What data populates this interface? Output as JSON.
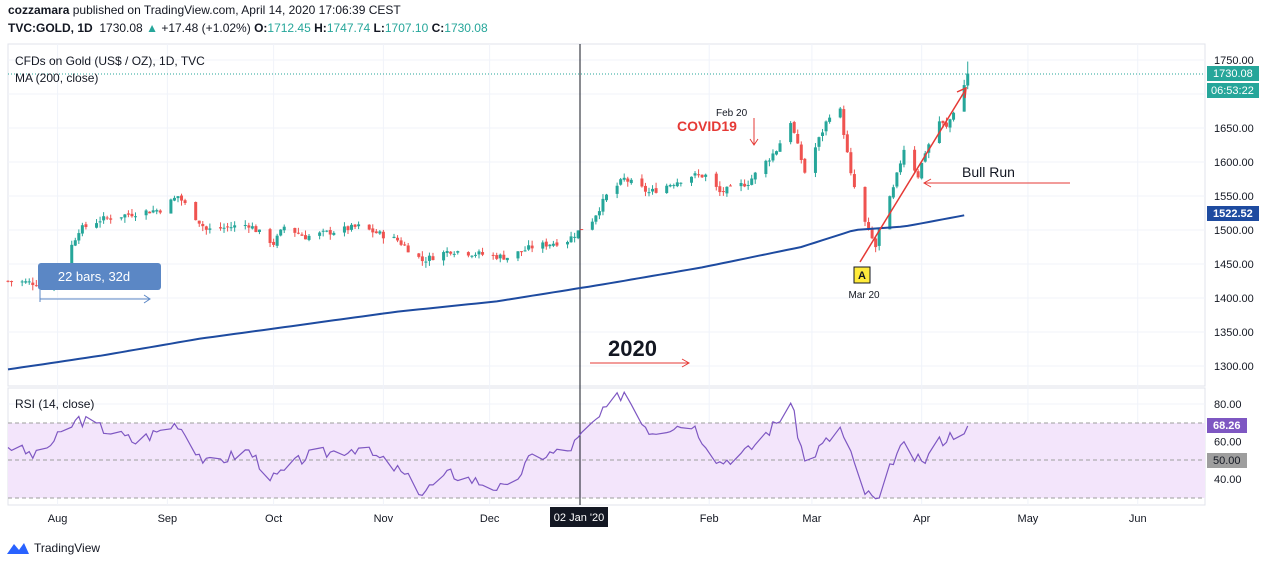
{
  "header": {
    "author": "cozzamara",
    "published_text": "published on TradingView.com, April 14, 2020 17:06:39 CEST",
    "symbol": "TVC:GOLD, 1D",
    "last": "1730.08",
    "change": "+17.48 (+1.02%)",
    "o_label": "O:",
    "o": "1712.45",
    "h_label": "H:",
    "h": "1747.74",
    "l_label": "L:",
    "l": "1707.10",
    "c_label": "C:",
    "c": "1730.08"
  },
  "legend": {
    "instrument": "CFDs on Gold (US$ / OZ), 1D, TVC",
    "ma": "MA (200, close)",
    "rsi": "RSI (14, close)"
  },
  "annotations": {
    "bars_label": "22 bars, 32d",
    "covid": "COVID19",
    "feb20": "Feb 20",
    "year": "2020",
    "bull_run": "Bull Run",
    "marker": "A",
    "mar20": "Mar 20"
  },
  "price_axis": {
    "labels": [
      "1750.00",
      "1700.00",
      "1650.00",
      "1600.00",
      "1550.00",
      "1500.00",
      "1450.00",
      "1400.00",
      "1350.00",
      "1300.00"
    ],
    "last_price_tag": "1730.08",
    "countdown_tag": "06:53:22",
    "ma_tag": "1522.52"
  },
  "rsi_axis": {
    "labels": [
      "80.00",
      "60.00",
      "40.00"
    ],
    "rsi_tag": "68.26",
    "mid_tag": "50.00"
  },
  "time_axis": {
    "labels": [
      "Aug",
      "Sep",
      "Oct",
      "Nov",
      "Dec",
      "Feb",
      "Mar",
      "Apr",
      "May",
      "Jun"
    ],
    "crosshair_label": "02 Jan '20"
  },
  "colors": {
    "up": "#26a69a",
    "down": "#ef5350",
    "ma": "#1e4ba0",
    "rsi": "#7e57c2",
    "rsi_band": "#f3e5fb",
    "annotation_red": "#e53935",
    "label_blue": "#5b87c5"
  },
  "footer": {
    "brand": "TradingView"
  },
  "chart_data": [
    {
      "type": "candlestick",
      "title": "CFDs on Gold (US$ / OZ), 1D, TVC",
      "x_range": [
        "2019-07-18",
        "2020-06-20"
      ],
      "ylim": [
        1280,
        1765
      ],
      "price_anchors": [
        {
          "date": "2019-07-18",
          "close": 1425
        },
        {
          "date": "2019-07-31",
          "close": 1420
        },
        {
          "date": "2019-08-07",
          "close": 1500
        },
        {
          "date": "2019-08-13",
          "close": 1515
        },
        {
          "date": "2019-08-23",
          "close": 1525
        },
        {
          "date": "2019-08-30",
          "close": 1530
        },
        {
          "date": "2019-09-04",
          "close": 1550
        },
        {
          "date": "2019-09-12",
          "close": 1500
        },
        {
          "date": "2019-09-24",
          "close": 1508
        },
        {
          "date": "2019-10-01",
          "close": 1480
        },
        {
          "date": "2019-10-04",
          "close": 1505
        },
        {
          "date": "2019-10-10",
          "close": 1490
        },
        {
          "date": "2019-10-25",
          "close": 1505
        },
        {
          "date": "2019-11-05",
          "close": 1485
        },
        {
          "date": "2019-11-12",
          "close": 1455
        },
        {
          "date": "2019-11-20",
          "close": 1470
        },
        {
          "date": "2019-12-02",
          "close": 1462
        },
        {
          "date": "2019-12-06",
          "close": 1460
        },
        {
          "date": "2019-12-13",
          "close": 1475
        },
        {
          "date": "2019-12-23",
          "close": 1485
        },
        {
          "date": "2019-12-30",
          "close": 1515
        },
        {
          "date": "2020-01-03",
          "close": 1550
        },
        {
          "date": "2020-01-08",
          "close": 1575
        },
        {
          "date": "2020-01-15",
          "close": 1555
        },
        {
          "date": "2020-01-27",
          "close": 1580
        },
        {
          "date": "2020-01-31",
          "close": 1580
        },
        {
          "date": "2020-02-04",
          "close": 1555
        },
        {
          "date": "2020-02-12",
          "close": 1570
        },
        {
          "date": "2020-02-20",
          "close": 1618
        },
        {
          "date": "2020-02-24",
          "close": 1660
        },
        {
          "date": "2020-02-28",
          "close": 1585
        },
        {
          "date": "2020-03-06",
          "close": 1670
        },
        {
          "date": "2020-03-09",
          "close": 1675
        },
        {
          "date": "2020-03-12",
          "close": 1580
        },
        {
          "date": "2020-03-16",
          "close": 1510
        },
        {
          "date": "2020-03-19",
          "close": 1475
        },
        {
          "date": "2020-03-20",
          "close": 1500
        },
        {
          "date": "2020-03-24",
          "close": 1560
        },
        {
          "date": "2020-03-27",
          "close": 1620
        },
        {
          "date": "2020-03-31",
          "close": 1580
        },
        {
          "date": "2020-04-02",
          "close": 1615
        },
        {
          "date": "2020-04-06",
          "close": 1660
        },
        {
          "date": "2020-04-08",
          "close": 1650
        },
        {
          "date": "2020-04-13",
          "close": 1713
        },
        {
          "date": "2020-04-14",
          "open": 1712.45,
          "high": 1747.74,
          "low": 1707.1,
          "close": 1730.08
        }
      ],
      "moving_average": {
        "name": "MA (200, close)",
        "points": [
          {
            "date": "2019-07-18",
            "value": 1295
          },
          {
            "date": "2019-08-13",
            "value": 1315
          },
          {
            "date": "2019-09-10",
            "value": 1340
          },
          {
            "date": "2019-10-08",
            "value": 1360
          },
          {
            "date": "2019-11-05",
            "value": 1380
          },
          {
            "date": "2019-12-03",
            "value": 1395
          },
          {
            "date": "2020-01-02",
            "value": 1420
          },
          {
            "date": "2020-01-30",
            "value": 1445
          },
          {
            "date": "2020-02-27",
            "value": 1475
          },
          {
            "date": "2020-03-13",
            "value": 1500
          },
          {
            "date": "2020-03-27",
            "value": 1505
          },
          {
            "date": "2020-04-14",
            "value": 1522.52
          }
        ]
      }
    },
    {
      "type": "line",
      "title": "RSI (14, close)",
      "ylim": [
        25,
        90
      ],
      "bands": [
        30,
        50,
        70
      ],
      "x_range": [
        "2019-07-18",
        "2020-06-20"
      ],
      "series": [
        {
          "points": [
            {
              "date": "2019-07-18",
              "value": 58
            },
            {
              "date": "2019-07-26",
              "value": 52
            },
            {
              "date": "2019-08-07",
              "value": 72
            },
            {
              "date": "2019-08-23",
              "value": 60
            },
            {
              "date": "2019-09-04",
              "value": 70
            },
            {
              "date": "2019-09-12",
              "value": 48
            },
            {
              "date": "2019-09-24",
              "value": 55
            },
            {
              "date": "2019-10-01",
              "value": 40
            },
            {
              "date": "2019-10-10",
              "value": 52
            },
            {
              "date": "2019-10-25",
              "value": 57
            },
            {
              "date": "2019-11-05",
              "value": 45
            },
            {
              "date": "2019-11-12",
              "value": 33
            },
            {
              "date": "2019-11-20",
              "value": 43
            },
            {
              "date": "2019-12-06",
              "value": 34
            },
            {
              "date": "2019-12-13",
              "value": 52
            },
            {
              "date": "2019-12-23",
              "value": 55
            },
            {
              "date": "2020-01-02",
              "value": 75
            },
            {
              "date": "2020-01-08",
              "value": 87
            },
            {
              "date": "2020-01-15",
              "value": 66
            },
            {
              "date": "2020-01-27",
              "value": 70
            },
            {
              "date": "2020-02-04",
              "value": 49
            },
            {
              "date": "2020-02-12",
              "value": 55
            },
            {
              "date": "2020-02-20",
              "value": 70
            },
            {
              "date": "2020-02-24",
              "value": 81
            },
            {
              "date": "2020-02-28",
              "value": 49
            },
            {
              "date": "2020-03-09",
              "value": 67
            },
            {
              "date": "2020-03-16",
              "value": 33
            },
            {
              "date": "2020-03-20",
              "value": 27
            },
            {
              "date": "2020-03-24",
              "value": 51
            },
            {
              "date": "2020-03-27",
              "value": 57
            },
            {
              "date": "2020-04-01",
              "value": 48
            },
            {
              "date": "2020-04-06",
              "value": 60
            },
            {
              "date": "2020-04-14",
              "value": 68.26
            }
          ]
        }
      ]
    }
  ]
}
